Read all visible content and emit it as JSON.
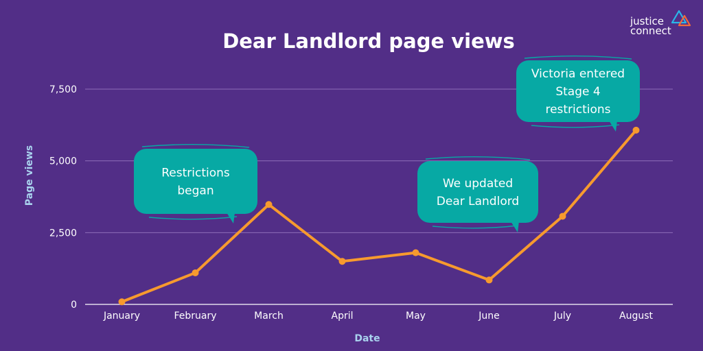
{
  "brand": {
    "line1": "justice",
    "line2": "connect"
  },
  "colors": {
    "background": "#522e87",
    "line": "#f79a2e",
    "callout": "#07a9a4",
    "grid": "#8f6fb8",
    "axis_label": "#a9d2ee",
    "text": "#ffffff"
  },
  "chart_data": {
    "type": "line",
    "title": "Dear Landlord page views",
    "xlabel": "Date",
    "ylabel": "Page views",
    "categories": [
      "January",
      "February",
      "March",
      "April",
      "May",
      "June",
      "July",
      "August"
    ],
    "series": [
      {
        "values": [
          90,
          1100,
          3480,
          1500,
          1800,
          850,
          3070,
          6070
        ]
      }
    ],
    "yticks": [
      0,
      2500,
      5000,
      7500
    ],
    "ytick_labels": [
      "0",
      "2,500",
      "5,000",
      "7,500"
    ],
    "ylim": [
      0,
      7500
    ],
    "grid": true,
    "annotations": [
      {
        "lines": [
          "Restrictions",
          "began"
        ],
        "category": "March"
      },
      {
        "lines": [
          "We updated",
          "Dear Landlord"
        ],
        "category": "June"
      },
      {
        "lines": [
          "Victoria entered",
          "Stage 4",
          "restrictions"
        ],
        "category": "August"
      }
    ]
  }
}
